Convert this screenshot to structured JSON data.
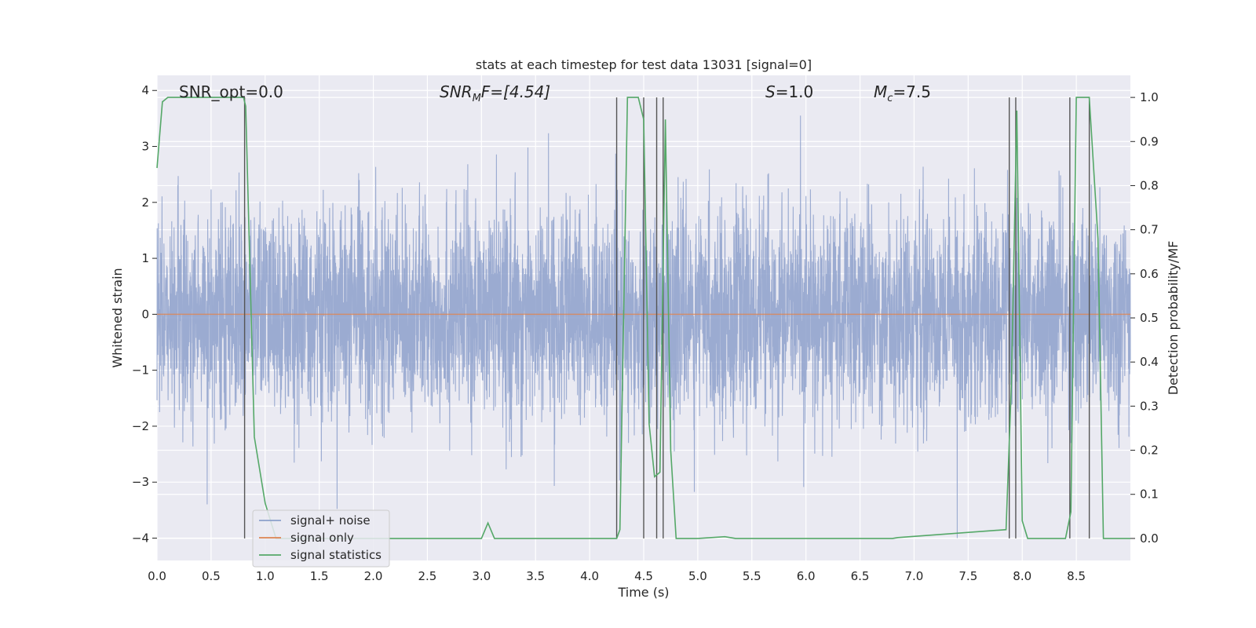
{
  "chart_data": {
    "type": "line",
    "title": "stats at each timestep for test data 13031 [signal=0]",
    "xlabel": "Time (s)",
    "ylabel_left": "Whitened strain",
    "ylabel_right": "Detection probability/MF",
    "xlim": [
      0.0,
      9.0
    ],
    "ylim_left": [
      -4.4,
      4.27
    ],
    "ylim_right": [
      -0.05,
      1.05
    ],
    "grid": true,
    "legend_position": "bottom-left",
    "x_ticks": [
      "0.0",
      "0.5",
      "1.0",
      "1.5",
      "2.0",
      "2.5",
      "3.0",
      "3.5",
      "4.0",
      "4.5",
      "5.0",
      "5.5",
      "6.0",
      "6.5",
      "7.0",
      "7.5",
      "8.0",
      "8.5"
    ],
    "y_ticks_left": [
      "−4",
      "−3",
      "−2",
      "−1",
      "0",
      "1",
      "2",
      "3",
      "4"
    ],
    "y_ticks_right": [
      "0.0",
      "0.1",
      "0.2",
      "0.3",
      "0.4",
      "0.5",
      "0.6",
      "0.7",
      "0.8",
      "0.9",
      "1.0"
    ],
    "annotations": {
      "snr_opt": "SNR_opt=0.0",
      "snr_mf_base": "SNR",
      "snr_mf_sub": "M",
      "snr_mf_rest": "F=[4.54]",
      "s_italic": "S",
      "s_rest": "=1.0",
      "mc_base": "M",
      "mc_sub": "c",
      "mc_rest": "=7.5"
    },
    "legend": [
      "signal+ noise",
      "signal only",
      "signal statistics"
    ],
    "series": [
      {
        "name": "signal+ noise",
        "color": "#8da0cb",
        "kind": "noise",
        "sample_rate": 4096,
        "approx_std": 0.95,
        "approx_range": [
          -4.0,
          3.55
        ]
      },
      {
        "name": "signal only",
        "color": "#dd8452",
        "x": [
          0.0,
          9.0
        ],
        "y": [
          0.0,
          0.0
        ]
      },
      {
        "name": "signal statistics",
        "color": "#55a868",
        "x": [
          0.0,
          0.05,
          0.1,
          0.2,
          0.8,
          0.82,
          0.9,
          1.0,
          1.1,
          1.2,
          3.0,
          3.06,
          3.12,
          4.0,
          4.25,
          4.28,
          4.35,
          4.45,
          4.5,
          4.55,
          4.6,
          4.65,
          4.7,
          4.75,
          4.8,
          5.0,
          5.25,
          5.35,
          6.8,
          6.85,
          7.85,
          7.9,
          7.95,
          8.0,
          8.05,
          8.4,
          8.45,
          8.5,
          8.62,
          8.7,
          8.75,
          9.0
        ],
        "y": [
          0.84,
          0.99,
          1.0,
          1.0,
          1.0,
          0.98,
          0.23,
          0.08,
          0.0,
          0.0,
          0.0,
          0.035,
          0.0,
          0.0,
          0.0,
          0.02,
          1.0,
          1.0,
          0.95,
          0.26,
          0.14,
          0.15,
          0.95,
          0.2,
          0.0,
          0.0,
          0.004,
          0.0,
          0.0,
          0.002,
          0.02,
          0.35,
          0.97,
          0.04,
          0.0,
          0.0,
          0.06,
          1.0,
          1.0,
          0.68,
          0.0,
          0.0
        ]
      }
    ],
    "event_markers_x": [
      0.81,
      4.25,
      4.5,
      4.62,
      4.68,
      7.88,
      7.94,
      8.44,
      8.62
    ]
  }
}
